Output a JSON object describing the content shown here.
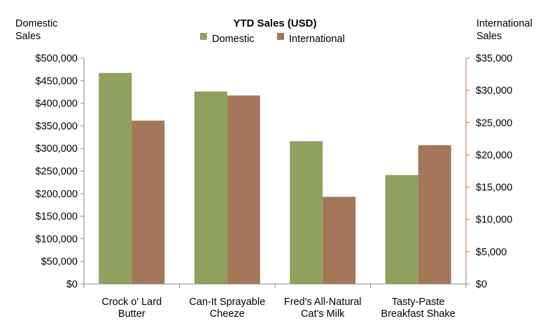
{
  "chart_data": {
    "type": "bar",
    "title": "YTD Sales (USD)",
    "categories": [
      [
        "Crock o' Lard",
        "Butter"
      ],
      [
        "Can-It Sprayable",
        "Cheeze"
      ],
      [
        "Fred's All-Natural",
        "Cat's Milk"
      ],
      [
        "Tasty-Paste",
        "Breakfast Shake"
      ]
    ],
    "series": [
      {
        "name": "Domestic",
        "axis": "left",
        "color": "#8fa05f",
        "values": [
          467000,
          426000,
          316000,
          241000
        ]
      },
      {
        "name": "International",
        "axis": "right",
        "color": "#a4765a",
        "values": [
          25300,
          29200,
          13500,
          21500
        ]
      }
    ],
    "left_axis": {
      "label": [
        "Domestic",
        "Sales"
      ],
      "min": 0,
      "max": 500000,
      "step": 50000,
      "tick_labels": [
        "$0",
        "$50,000",
        "$100,000",
        "$150,000",
        "$200,000",
        "$250,000",
        "$300,000",
        "$350,000",
        "$400,000",
        "$450,000",
        "$500,000"
      ]
    },
    "right_axis": {
      "label": [
        "International",
        "Sales"
      ],
      "min": 0,
      "max": 35000,
      "step": 5000,
      "tick_labels": [
        "$0",
        "$5,000",
        "$10,000",
        "$15,000",
        "$20,000",
        "$25,000",
        "$30,000",
        "$35,000"
      ]
    },
    "legend_position": "top-center",
    "grid": false
  }
}
